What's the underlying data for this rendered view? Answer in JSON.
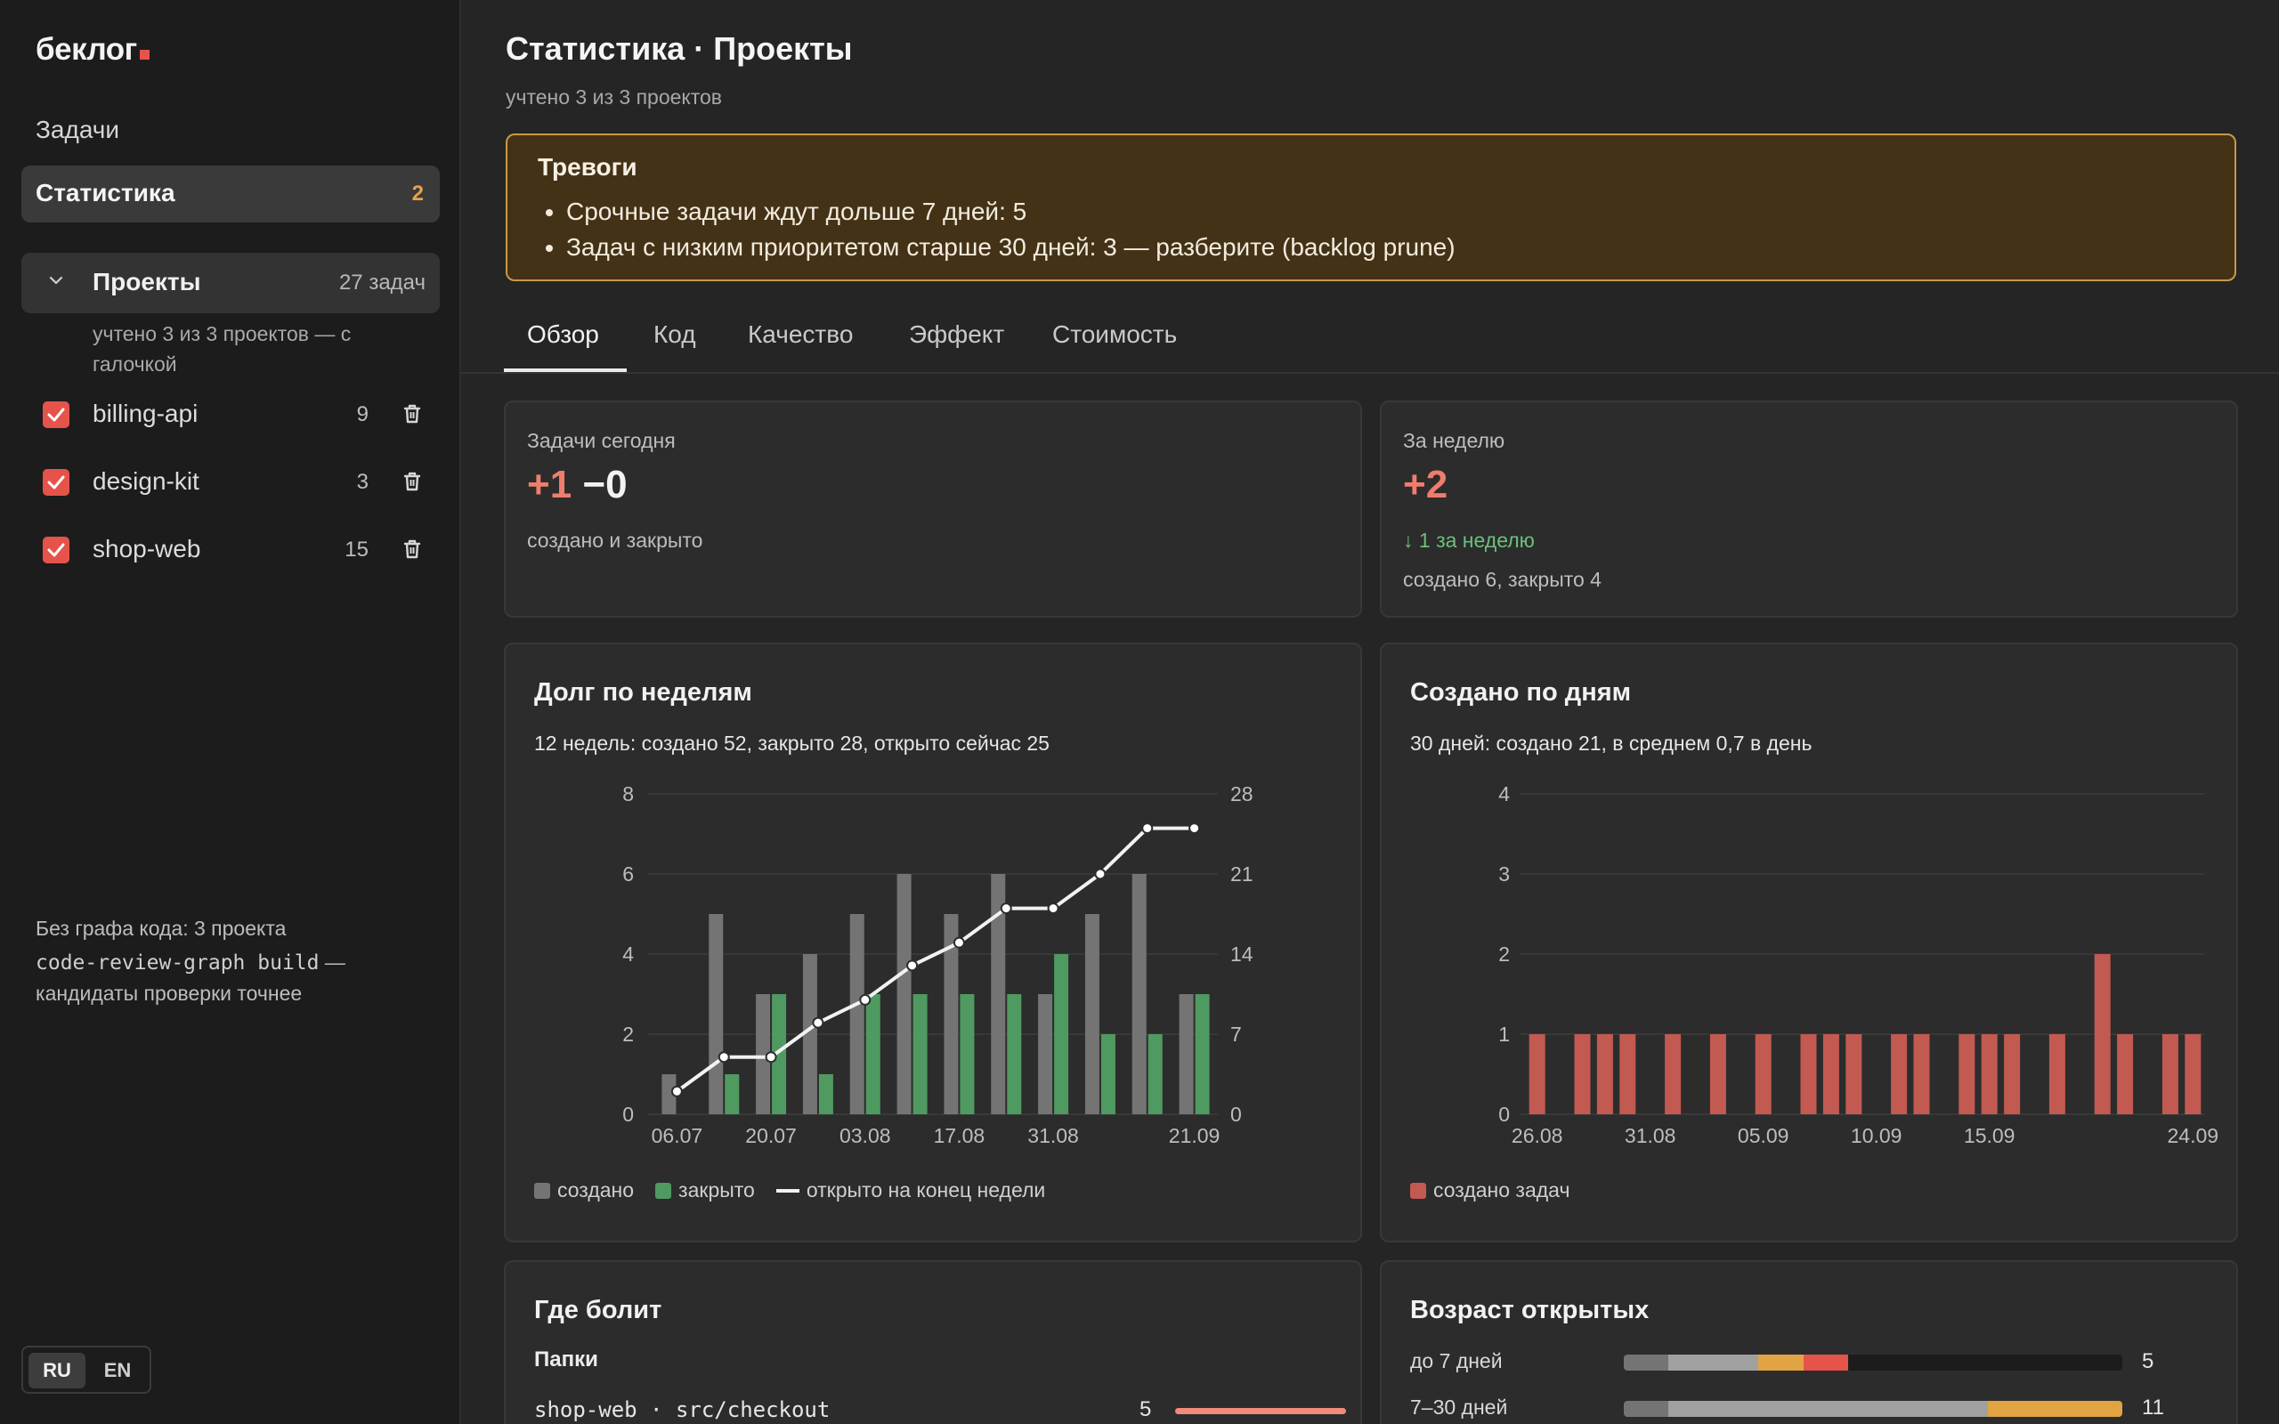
{
  "app": {
    "logo": "беклог",
    "nav": {
      "tasks": "Задачи",
      "stats": "Статистика",
      "stats_badge": "2"
    }
  },
  "sidebar": {
    "projects_label": "Проекты",
    "projects_count": "27 задач",
    "projects_note": "учтено 3 из 3 проектов — с галочкой",
    "projects": [
      {
        "name": "billing-api",
        "count": "9",
        "checked": true
      },
      {
        "name": "design-kit",
        "count": "3",
        "checked": true
      },
      {
        "name": "shop-web",
        "count": "15",
        "checked": true
      }
    ],
    "nograph_title": "Без графа кода: 3 проекта",
    "nograph_cmd": "code-review-graph build",
    "nograph_rest": " —",
    "nograph_tail": "кандидаты проверки точнее",
    "lang": {
      "ru": "RU",
      "en": "EN",
      "active": "RU"
    }
  },
  "header": {
    "title": "Статистика · Проекты",
    "subtitle": "учтено 3 из 3 проектов"
  },
  "alerts": {
    "title": "Тревоги",
    "items": [
      "Срочные задачи ждут дольше 7 дней: 5",
      "Задач с низким приоритетом старше 30 дней: 3 — разберите (backlog prune)"
    ]
  },
  "tabs": [
    "Обзор",
    "Код",
    "Качество",
    "Эффект",
    "Стоимость"
  ],
  "active_tab": "Обзор",
  "today": {
    "label": "Задачи сегодня",
    "created": "+1",
    "closed": "−0",
    "sub": "создано и закрыто"
  },
  "week": {
    "label": "За неделю",
    "value": "+2",
    "trend": "↓ 1 за неделю",
    "sub": "создано 6, закрыто 4"
  },
  "colors": {
    "created": "#747474",
    "closed": "#4f9a60",
    "open_line": "#f2f2f2",
    "daily": "#c25a52",
    "accent": "#e5534b",
    "age_seg1": "#747474",
    "age_seg2": "#a0a0a0",
    "age_seg3": "#e2a342",
    "age_seg4": "#e5534b"
  },
  "chart_data": [
    {
      "type": "bar",
      "title": "Долг по неделям",
      "subtitle": "12 недель: создано 52, закрыто 28, открыто сейчас 25",
      "x_labels_shown": [
        "06.07",
        "20.07",
        "03.08",
        "17.08",
        "31.08",
        "21.09"
      ],
      "weeks": 12,
      "ylim_left": [
        0,
        8
      ],
      "yticks_left": [
        "0",
        "2",
        "4",
        "6",
        "8"
      ],
      "ylim_right": [
        0,
        28
      ],
      "yticks_right": [
        "0",
        "7",
        "14",
        "21",
        "28"
      ],
      "series": [
        {
          "name": "создано",
          "values": [
            1,
            5,
            3,
            4,
            5,
            6,
            5,
            6,
            3,
            5,
            6,
            3
          ]
        },
        {
          "name": "закрыто",
          "values": [
            0,
            1,
            3,
            1,
            3,
            3,
            3,
            3,
            4,
            2,
            2,
            3
          ]
        },
        {
          "name": "открыто на конец недели",
          "type": "line",
          "axis": "right",
          "values": [
            2,
            5,
            5,
            8,
            10,
            13,
            15,
            18,
            18,
            21,
            25,
            25
          ]
        }
      ],
      "grid": true,
      "legend": "bottom-left"
    },
    {
      "type": "bar",
      "title": "Создано по дням",
      "subtitle": "30 дней: создано 21, в среднем 0,7 в день",
      "x_labels_shown": [
        "26.08",
        "31.08",
        "05.09",
        "10.09",
        "15.09",
        "24.09"
      ],
      "ylim": [
        0,
        4
      ],
      "yticks": [
        "0",
        "1",
        "2",
        "3",
        "4"
      ],
      "series": [
        {
          "name": "создано задач",
          "values": [
            1,
            0,
            1,
            1,
            1,
            0,
            1,
            0,
            1,
            0,
            1,
            0,
            1,
            1,
            1,
            0,
            1,
            1,
            0,
            1,
            1,
            1,
            0,
            1,
            0,
            2,
            1,
            0,
            1,
            1
          ]
        }
      ],
      "grid": true,
      "legend": "bottom-left"
    }
  ],
  "pain": {
    "title": "Где болит",
    "folders_label": "Папки",
    "rows": [
      {
        "path": "shop-web · src/checkout",
        "count": "5"
      }
    ]
  },
  "age": {
    "title": "Возраст открытых",
    "rows": [
      {
        "label": "до 7 дней",
        "count": "5",
        "segments": [
          0.09,
          0.18,
          0.09,
          0.09
        ]
      },
      {
        "label": "7–30 дней",
        "count": "11",
        "segments": [
          0.09,
          0.64,
          0.27,
          0
        ]
      }
    ]
  }
}
